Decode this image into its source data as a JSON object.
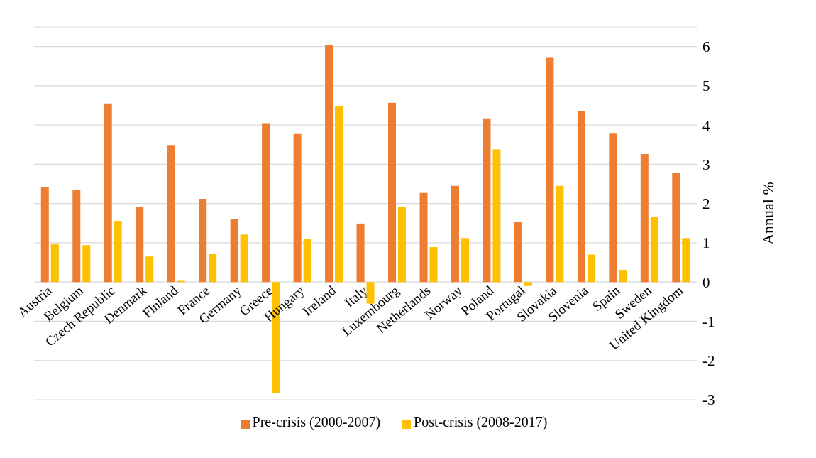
{
  "chart_data": {
    "type": "bar",
    "categories": [
      "Austria",
      "Belgium",
      "Czech Republic",
      "Denmark",
      "Finland",
      "France",
      "Germany",
      "Greece",
      "Hungary",
      "Ireland",
      "Italy",
      "Luxembourg",
      "Netherlands",
      "Norway",
      "Poland",
      "Portugal",
      "Slovakia",
      "Slovenia",
      "Spain",
      "Sweden",
      "United Kingdom"
    ],
    "series": [
      {
        "name": "Pre-crisis (2000-2007)",
        "color": "#ed7d31",
        "values": [
          2.43,
          2.34,
          4.55,
          1.92,
          3.49,
          2.12,
          1.61,
          4.05,
          3.77,
          6.03,
          1.49,
          4.57,
          2.27,
          2.45,
          4.17,
          1.53,
          5.73,
          4.35,
          3.78,
          3.26,
          2.79
        ]
      },
      {
        "name": "Post-crisis (2008-2017)",
        "color": "#ffc000",
        "values": [
          0.96,
          0.94,
          1.56,
          0.65,
          0.03,
          0.71,
          1.21,
          -2.82,
          1.09,
          4.49,
          -0.55,
          1.91,
          0.89,
          1.12,
          3.38,
          -0.1,
          2.45,
          0.7,
          0.31,
          1.66,
          1.12
        ]
      }
    ],
    "ylabel": "Annual %",
    "ylim": [
      -3,
      6.5
    ],
    "yticks": [
      -3,
      -2,
      -1,
      0,
      1,
      2,
      3,
      4,
      5,
      6
    ],
    "grid": "y",
    "legend": "bottom"
  }
}
